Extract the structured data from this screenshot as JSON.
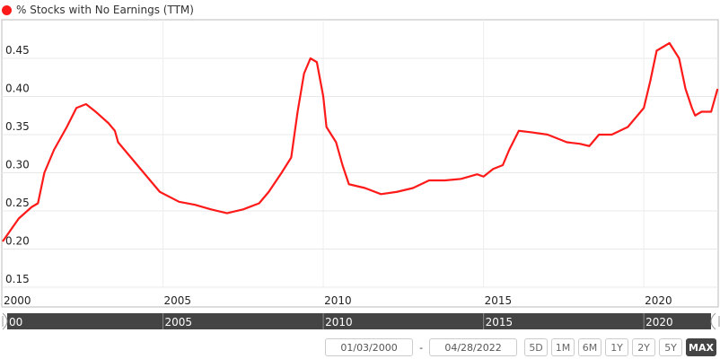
{
  "chart_data": {
    "type": "line",
    "title": "",
    "series": [
      {
        "name": "% Stocks with No Earnings (TTM)",
        "color": "#ff1a1a",
        "x": [
          2000.0,
          2000.5,
          2000.9,
          2001.1,
          2001.3,
          2001.6,
          2002.0,
          2002.3,
          2002.6,
          2002.9,
          2003.3,
          2003.5,
          2003.6,
          2004.0,
          2004.5,
          2004.9,
          2005.5,
          2006.0,
          2006.5,
          2007.0,
          2007.5,
          2008.0,
          2008.3,
          2008.7,
          2009.0,
          2009.2,
          2009.4,
          2009.6,
          2009.8,
          2010.0,
          2010.1,
          2010.4,
          2010.6,
          2010.8,
          2011.3,
          2011.8,
          2012.3,
          2012.8,
          2013.3,
          2013.8,
          2014.3,
          2014.8,
          2015.0,
          2015.3,
          2015.6,
          2015.8,
          2016.1,
          2016.5,
          2017.0,
          2017.3,
          2017.6,
          2018.0,
          2018.3,
          2018.6,
          2019.0,
          2019.5,
          2019.9,
          2020.0,
          2020.2,
          2020.4,
          2020.8,
          2021.1,
          2021.3,
          2021.5,
          2021.6,
          2021.8,
          2022.1,
          2022.3
        ],
        "y": [
          0.21,
          0.24,
          0.255,
          0.26,
          0.3,
          0.33,
          0.36,
          0.385,
          0.39,
          0.38,
          0.365,
          0.355,
          0.34,
          0.32,
          0.295,
          0.275,
          0.262,
          0.258,
          0.252,
          0.247,
          0.252,
          0.26,
          0.275,
          0.3,
          0.32,
          0.38,
          0.43,
          0.45,
          0.445,
          0.4,
          0.36,
          0.34,
          0.31,
          0.285,
          0.28,
          0.272,
          0.275,
          0.28,
          0.29,
          0.29,
          0.292,
          0.298,
          0.295,
          0.305,
          0.31,
          0.33,
          0.355,
          0.353,
          0.35,
          0.345,
          0.34,
          0.338,
          0.335,
          0.35,
          0.35,
          0.36,
          0.38,
          0.385,
          0.42,
          0.46,
          0.47,
          0.45,
          0.41,
          0.385,
          0.375,
          0.38,
          0.38,
          0.41
        ]
      }
    ],
    "yticks": [
      "0.15",
      "0.20",
      "0.25",
      "0.30",
      "0.35",
      "0.40",
      "0.45"
    ],
    "yticks_values": [
      0.15,
      0.2,
      0.25,
      0.3,
      0.35,
      0.4,
      0.45
    ],
    "xticks": [
      "2000",
      "2005",
      "2010",
      "2015",
      "2020"
    ],
    "xticks_values": [
      2000,
      2005,
      2010,
      2015,
      2020
    ],
    "navigator_ticks": [
      "00",
      "2005",
      "2010",
      "2015",
      "2020"
    ],
    "xlim": [
      2000,
      2022.32
    ],
    "ylim": [
      0.15,
      0.48
    ],
    "grid": true,
    "legend_position": "top-left"
  },
  "legend_label": "% Stocks with No Earnings (TTM)",
  "range": {
    "start": "01/03/2000",
    "end": "04/28/2022",
    "separator": "-",
    "buttons": [
      "5D",
      "1M",
      "6M",
      "1Y",
      "2Y",
      "5Y",
      "MAX"
    ],
    "active": "MAX"
  }
}
